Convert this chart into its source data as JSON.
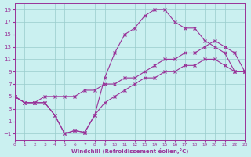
{
  "xlabel": "Windchill (Refroidissement éolien,°C)",
  "bg_color": "#caf0f0",
  "line_color": "#993399",
  "grid_color": "#99cccc",
  "xlim": [
    0,
    23
  ],
  "ylim": [
    -2,
    20
  ],
  "xticks": [
    0,
    1,
    2,
    3,
    4,
    5,
    6,
    7,
    8,
    9,
    10,
    11,
    12,
    13,
    14,
    15,
    16,
    17,
    18,
    19,
    20,
    21,
    22,
    23
  ],
  "yticks": [
    -1,
    1,
    3,
    5,
    7,
    9,
    11,
    13,
    15,
    17,
    19
  ],
  "curve_upper_x": [
    0,
    1,
    2,
    3,
    4,
    5,
    6,
    7,
    8,
    9,
    10,
    11,
    12,
    13,
    14,
    15,
    16,
    17,
    18,
    19,
    20,
    21,
    22,
    23
  ],
  "curve_upper_y": [
    5,
    4,
    4,
    4,
    2,
    -1,
    -0.5,
    -0.8,
    2,
    8,
    12,
    15,
    16,
    18,
    19,
    19,
    17,
    16,
    16,
    14,
    13,
    12,
    9,
    9
  ],
  "curve_mid_x": [
    0,
    1,
    2,
    3,
    4,
    5,
    6,
    7,
    8,
    9,
    10,
    11,
    12,
    13,
    14,
    15,
    16,
    17,
    18,
    19,
    20,
    21,
    22,
    23
  ],
  "curve_mid_y": [
    5,
    4,
    4,
    5,
    5,
    5,
    5,
    6,
    6,
    7,
    7,
    8,
    8,
    9,
    10,
    11,
    11,
    12,
    12,
    13,
    14,
    13,
    12,
    9
  ],
  "curve_lower_x": [
    0,
    1,
    2,
    3,
    4,
    5,
    6,
    7,
    8,
    9,
    10,
    11,
    12,
    13,
    14,
    15,
    16,
    17,
    18,
    19,
    20,
    21,
    22,
    23
  ],
  "curve_lower_y": [
    5,
    4,
    4,
    4,
    2,
    -1,
    -0.5,
    -0.8,
    2,
    4,
    5,
    6,
    7,
    8,
    8,
    9,
    9,
    10,
    10,
    11,
    11,
    10,
    9,
    9
  ]
}
